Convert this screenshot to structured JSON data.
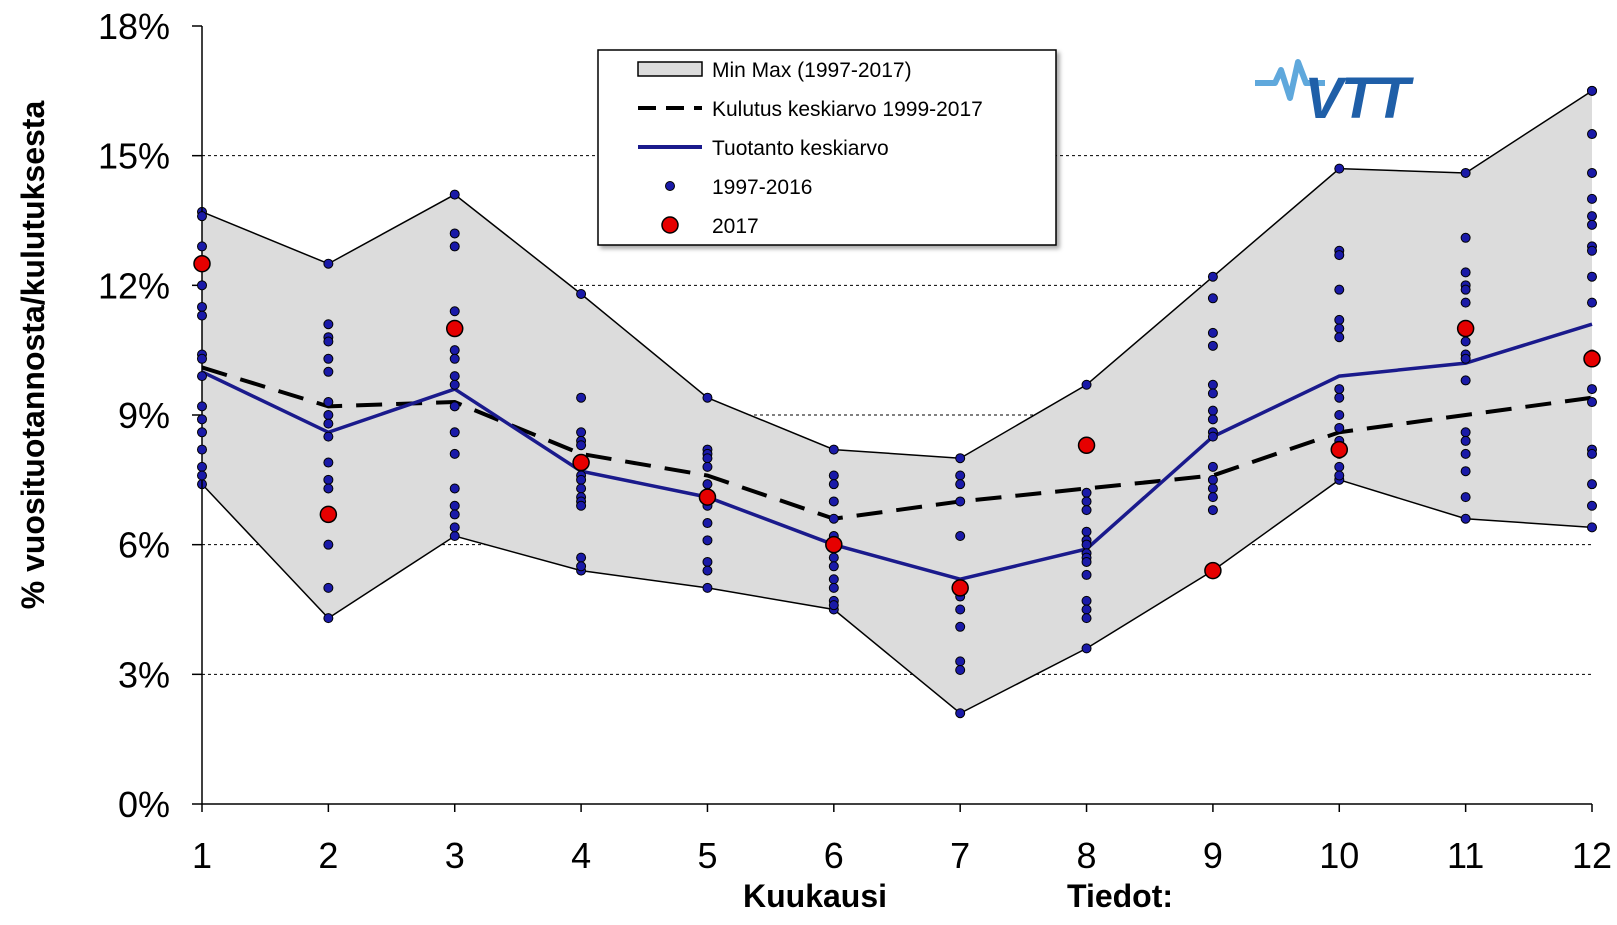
{
  "chart_data": {
    "type": "line",
    "title": "",
    "xlabel": "Kuukausi",
    "ylabel": "% vuosituotannosta/kulutuksesta",
    "footer_label": "Tiedot:",
    "logo_text": "VTT",
    "x": [
      1,
      2,
      3,
      4,
      5,
      6,
      7,
      8,
      9,
      10,
      11,
      12
    ],
    "ylim": [
      0,
      18
    ],
    "yticks": [
      0,
      3,
      6,
      9,
      12,
      15,
      18
    ],
    "ytick_labels": [
      "0%",
      "3%",
      "6%",
      "9%",
      "12%",
      "15%",
      "18%"
    ],
    "grid": "horizontal dashed",
    "legend_position": "top-center",
    "colors": {
      "band_fill": "#dcdcdc",
      "band_edge": "#000000",
      "consumption": "#000000",
      "production": "#1a1a8c",
      "historic_points": "#1a1aa8",
      "year_2017": "#e60000",
      "logo": "#1f5fa8",
      "logo_light": "#5fa8dc"
    },
    "legend": [
      {
        "key": "band",
        "label": "Min Max (1997-2017)"
      },
      {
        "key": "consumption",
        "label": "Kulutus keskiarvo 1999-2017"
      },
      {
        "key": "production",
        "label": "Tuotanto keskiarvo"
      },
      {
        "key": "historic",
        "label": "1997-2016"
      },
      {
        "key": "y2017",
        "label": "2017"
      }
    ],
    "series": [
      {
        "name": "Min Max (1997-2017)",
        "kind": "band",
        "min": [
          7.4,
          4.3,
          6.2,
          5.4,
          5.0,
          4.5,
          2.1,
          3.6,
          5.4,
          7.5,
          6.6,
          6.4
        ],
        "max": [
          13.7,
          12.5,
          14.1,
          11.8,
          9.4,
          8.2,
          8.0,
          9.7,
          12.2,
          14.7,
          14.6,
          16.5
        ]
      },
      {
        "name": "Kulutus keskiarvo 1999-2017",
        "kind": "dashed-line",
        "values": [
          10.1,
          9.2,
          9.3,
          8.1,
          7.6,
          6.6,
          7.0,
          7.3,
          7.6,
          8.6,
          9.0,
          9.4
        ]
      },
      {
        "name": "Tuotanto keskiarvo",
        "kind": "line",
        "values": [
          10.0,
          8.6,
          9.6,
          7.7,
          7.1,
          6.0,
          5.2,
          5.9,
          8.5,
          9.9,
          10.2,
          11.1
        ]
      },
      {
        "name": "1997-2016",
        "kind": "scatter",
        "points": [
          [
            13.6,
            12.9,
            12.0,
            11.5,
            11.3,
            10.4,
            10.3,
            9.9,
            9.2,
            8.9,
            8.6,
            8.2,
            7.8,
            7.6
          ],
          [
            11.1,
            10.8,
            10.7,
            10.3,
            10.0,
            9.3,
            9.0,
            8.8,
            8.5,
            7.9,
            7.5,
            7.3,
            6.0,
            5.0
          ],
          [
            13.2,
            12.9,
            11.4,
            11.0,
            10.5,
            10.3,
            9.9,
            9.7,
            9.2,
            8.6,
            8.1,
            7.3,
            6.9,
            6.7,
            6.4
          ],
          [
            9.4,
            8.6,
            8.4,
            8.3,
            7.8,
            7.6,
            7.5,
            7.3,
            7.1,
            7.0,
            6.9,
            5.7,
            5.5
          ],
          [
            8.2,
            8.1,
            8.0,
            7.8,
            7.4,
            7.2,
            6.9,
            6.5,
            6.1,
            5.6,
            5.4
          ],
          [
            7.6,
            7.4,
            7.0,
            6.6,
            6.2,
            5.7,
            5.5,
            5.2,
            5.0,
            4.7,
            4.6
          ],
          [
            7.6,
            7.4,
            7.0,
            6.2,
            4.8,
            4.5,
            4.1,
            3.3,
            3.1
          ],
          [
            7.2,
            7.0,
            6.8,
            6.3,
            6.1,
            6.0,
            5.8,
            5.7,
            5.6,
            5.3,
            4.7,
            4.5,
            4.3
          ],
          [
            11.7,
            10.9,
            10.6,
            9.7,
            9.5,
            9.1,
            8.9,
            8.6,
            8.5,
            7.8,
            7.5,
            7.3,
            7.1,
            6.8
          ],
          [
            12.8,
            12.7,
            11.9,
            11.2,
            11.0,
            10.8,
            9.6,
            9.4,
            9.0,
            8.7,
            8.4,
            8.1,
            7.8,
            7.6
          ],
          [
            13.1,
            12.3,
            12.0,
            11.9,
            11.6,
            11.0,
            10.7,
            10.4,
            10.3,
            9.8,
            8.6,
            8.4,
            8.1,
            7.7,
            7.1
          ],
          [
            16.5,
            15.5,
            14.6,
            14.0,
            13.6,
            13.4,
            12.9,
            12.8,
            12.2,
            11.6,
            10.4,
            9.6,
            9.3,
            8.2,
            8.1,
            7.4,
            6.9
          ]
        ]
      },
      {
        "name": "2017",
        "kind": "scatter",
        "values": [
          12.5,
          6.7,
          11.0,
          7.9,
          7.1,
          6.0,
          5.0,
          8.3,
          5.4,
          8.2,
          11.0,
          10.3
        ]
      }
    ]
  }
}
